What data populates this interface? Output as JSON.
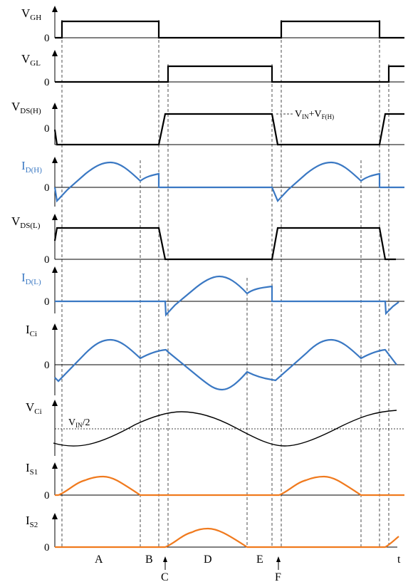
{
  "colors": {
    "black": "#000000",
    "blue": "#3a78c3",
    "orange": "#f07a1e"
  },
  "traces": [
    {
      "id": "vgh",
      "label_main": "V",
      "label_sub": "GH",
      "color": "#000000"
    },
    {
      "id": "vgl",
      "label_main": "V",
      "label_sub": "GL",
      "color": "#000000"
    },
    {
      "id": "vdsh",
      "label_main": "V",
      "label_sub": "DS(H)",
      "color": "#000000"
    },
    {
      "id": "idh",
      "label_main": "I",
      "label_sub": "D(H)",
      "color": "#3a78c3"
    },
    {
      "id": "vdsl",
      "label_main": "V",
      "label_sub": "DS(L)",
      "color": "#000000"
    },
    {
      "id": "idl",
      "label_main": "I",
      "label_sub": "D(L)",
      "color": "#3a78c3"
    },
    {
      "id": "ici",
      "label_main": "I",
      "label_sub": "Ci",
      "color": "#000000"
    },
    {
      "id": "vci",
      "label_main": "V",
      "label_sub": "Ci",
      "color": "#000000"
    },
    {
      "id": "is1",
      "label_main": "I",
      "label_sub": "S1",
      "color": "#000000"
    },
    {
      "id": "is2",
      "label_main": "I",
      "label_sub": "S2",
      "color": "#000000"
    }
  ],
  "zero_label": "0",
  "annotation_vdsh": {
    "v": "V",
    "in": "IN",
    "plus": "+V",
    "fh": "F(H)"
  },
  "annotation_vci": {
    "v": "V",
    "in": "IN",
    "rest": "/2"
  },
  "phases": {
    "A": "A",
    "B": "B",
    "C": "C",
    "D": "D",
    "E": "E",
    "F": "F",
    "t": "t"
  }
}
